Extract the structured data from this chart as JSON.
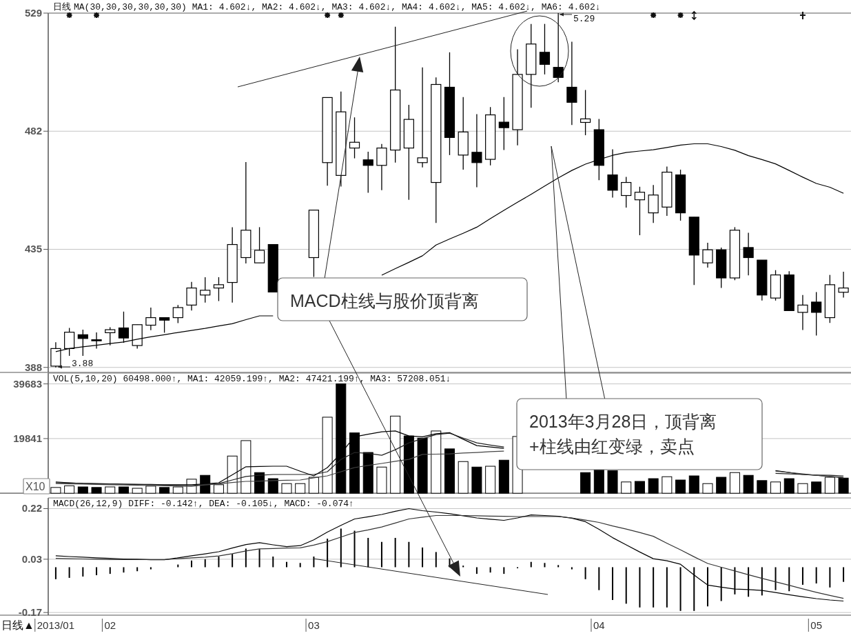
{
  "chart_data": [
    {
      "type": "candlestick",
      "title": "日线",
      "subtitle": "MA(30,30,30,30,30,30) MA1: 4.602↓, MA2: 4.602↓, MA3: 4.602↓, MA4: 4.602↓, MA5: 4.602↓, MA6: 4.602↓",
      "categories": [
        null,
        null,
        null,
        null,
        null,
        null,
        null,
        null,
        null,
        null,
        null,
        null,
        null,
        null,
        null,
        null,
        null,
        null,
        null,
        null,
        null,
        null,
        null,
        null,
        null,
        null,
        null,
        null,
        null,
        null,
        null,
        null,
        null,
        null,
        null,
        null,
        null,
        null,
        null,
        null,
        null,
        null,
        null,
        null,
        null,
        null,
        null,
        null,
        null,
        null,
        null,
        null,
        null,
        null,
        null,
        null,
        null,
        null,
        null
      ],
      "ohlc": [
        [
          388.5,
          398,
          388,
          395.5
        ],
        [
          395.5,
          403.7,
          392.6,
          402
        ],
        [
          401,
          403,
          392.6,
          399.5
        ],
        [
          399,
          401.9,
          395.5,
          399
        ],
        [
          401.8,
          404,
          396.8,
          403
        ],
        [
          403.7,
          410.2,
          397.8,
          399.7
        ],
        [
          396.7,
          405,
          395.5,
          405
        ],
        [
          404.8,
          411.8,
          402.8,
          407.8
        ],
        [
          407.8,
          407.8,
          401.8,
          406.8
        ],
        [
          407.8,
          412.8,
          405.6,
          411.8
        ],
        [
          412.8,
          422,
          410.6,
          419.6
        ],
        [
          416.8,
          423.9,
          413.8,
          418.7
        ],
        [
          419.6,
          423.9,
          414.4,
          420.9
        ],
        [
          421.8,
          443.8,
          413.8,
          436.9
        ],
        [
          431.7,
          469.7,
          429.4,
          442.6
        ],
        [
          429.6,
          443.8,
          429.6,
          434.6
        ],
        [
          436.9,
          436.9,
          418,
          418
        ],
        null,
        null,
        [
          431.7,
          450.6,
          424,
          450.6
        ],
        [
          469.5,
          495.4,
          460.3,
          495.4
        ],
        [
          464.4,
          497.8,
          460,
          489.7
        ],
        [
          475.3,
          487.5,
          471.2,
          477.6
        ],
        [
          470.6,
          473.8,
          457.5,
          468.4
        ],
        [
          468.4,
          476.9,
          458.5,
          475.3
        ],
        [
          474.5,
          523.6,
          469.5,
          498.4
        ],
        [
          475.3,
          492.5,
          454.7,
          486.7
        ],
        [
          469.5,
          507.4,
          467.6,
          471.4
        ],
        [
          461.6,
          503.4,
          445.5,
          500.6
        ],
        [
          499.5,
          513.4,
          472.5,
          479.5
        ],
        [
          472.5,
          495.6,
          466.7,
          481.7
        ],
        [
          473.6,
          488.8,
          459.7,
          469.5
        ],
        [
          470.8,
          491.6,
          468.4,
          488.5
        ],
        [
          485.6,
          495.6,
          474.5,
          483.4
        ],
        [
          482.6,
          514.6,
          476.4,
          504.6
        ],
        [
          504.6,
          524.7,
          491.3,
          516.7
        ],
        [
          513.4,
          524.7,
          504.6,
          508.6
        ],
        [
          507.4,
          529,
          501.5,
          503.4
        ],
        [
          499.5,
          517.6,
          484.5,
          493.5
        ],
        [
          485.5,
          498.4,
          480.4,
          486.9
        ],
        [
          482.6,
          486.9,
          462.5,
          468.4
        ],
        [
          464.6,
          474.8,
          455.6,
          458.5
        ],
        [
          456.4,
          463.8,
          451.6,
          461.6
        ],
        [
          454.7,
          459.9,
          440.6,
          457.7
        ],
        [
          449.5,
          460.6,
          445.5,
          456.6
        ],
        [
          451.8,
          467.9,
          448.3,
          465.7
        ],
        [
          464.6,
          466.7,
          446.4,
          449.5
        ],
        [
          447.8,
          447.8,
          420.8,
          432.7
        ],
        [
          429.6,
          437.6,
          427.7,
          434.8
        ],
        [
          434.8,
          435.7,
          419.6,
          423.6
        ],
        [
          423.6,
          443.8,
          422.7,
          442.6
        ],
        [
          435.7,
          441.6,
          424.6,
          431.7
        ],
        [
          430.7,
          430.7,
          414.6,
          416.8
        ],
        [
          415.6,
          426.7,
          414.6,
          424.8
        ],
        [
          424.8,
          426.3,
          410.6,
          410.6
        ],
        [
          409.9,
          416.8,
          402.9,
          412.8
        ],
        [
          414,
          418,
          400.7,
          409.9
        ],
        [
          407.8,
          424.8,
          405.7,
          420.9
        ],
        [
          417.9,
          426.1,
          415.8,
          419.6
        ]
      ],
      "series": [
        {
          "type": "line",
          "color": "#000000",
          "values": [
            394.3,
            395.5,
            396.2,
            396.8,
            397.5,
            398.1,
            399.2,
            400.2,
            401.0,
            401.9,
            402.7,
            403.5,
            404.5,
            405.4,
            407.0,
            408.5,
            408.5,
            null,
            null,
            null,
            null,
            null,
            null,
            null,
            424.7,
            427.3,
            429.8,
            432.4,
            436.7,
            439.1,
            441.4,
            443.8,
            447.2,
            450.5,
            453.7,
            456.9,
            460.2,
            463.4,
            466.4,
            468.9,
            470.7,
            472.4,
            473.5,
            474.1,
            474.6,
            475.5,
            476.5,
            477.0,
            477.0,
            475.9,
            474.4,
            472.3,
            470.7,
            469.0,
            466.4,
            463.7,
            461.2,
            459.7,
            457.3
          ]
        }
      ],
      "ylim": [
        386,
        529
      ],
      "yticks": [
        388,
        435,
        482,
        529
      ],
      "grid": "y",
      "tick_labels": "y",
      "annotations": [
        "3.88",
        "5.29",
        "MACD柱线与股价顶背离",
        "2013年3月28日，顶背离+柱线由红变绿，卖点"
      ]
    },
    {
      "type": "bar",
      "title": "VOL(5,10,20) 60498.000↑, MA1: 42059.199↑, MA2: 47421.199↑, MA3: 57208.051↓",
      "categories": [
        null,
        null,
        null,
        null,
        null,
        null,
        null,
        null,
        null,
        null,
        null,
        null,
        null,
        null,
        null,
        null,
        null,
        null,
        null,
        null,
        null,
        null,
        null,
        null,
        null,
        null,
        null,
        null,
        null,
        null,
        null,
        null,
        null,
        null,
        null,
        null,
        null,
        null,
        null,
        null,
        null,
        null,
        null,
        null,
        null,
        null,
        null,
        null,
        null,
        null,
        null,
        null,
        null,
        null,
        null,
        null,
        null,
        null,
        null
      ],
      "series": [
        {
          "type": "line",
          "color": "#000000",
          "values": [
            4100,
            3800,
            3500,
            3400,
            3400,
            3300,
            3200,
            3200,
            3100,
            3100,
            3100,
            3400,
            3800,
            6700,
            9600,
            9700,
            9800,
            9800,
            8000,
            6300,
            9300,
            14500,
            20500,
            21400,
            22300,
            22600,
            20800,
            20500,
            21600,
            22000,
            19600,
            17300,
            16800,
            16300,
            null,
            null,
            null,
            null,
            null,
            null,
            null,
            null,
            null,
            null,
            null,
            null,
            null,
            null,
            null,
            null,
            null,
            null,
            null,
            8200,
            7500,
            6800,
            6500,
            6100,
            5800
          ]
        },
        {
          "type": "line",
          "color": "#222222",
          "values": [
            3800,
            3700,
            3600,
            3500,
            3400,
            3300,
            3200,
            3100,
            3000,
            2900,
            2800,
            3200,
            3500,
            4800,
            6100,
            6500,
            6800,
            6800,
            6800,
            6800,
            7800,
            12300,
            14800,
            14500,
            13800,
            15800,
            18300,
            19800,
            21300,
            21800,
            20000,
            18300,
            17500,
            16800,
            null,
            null,
            null,
            null,
            null,
            null,
            null,
            null,
            null,
            null,
            null,
            null,
            null,
            null,
            null,
            null,
            null,
            null,
            null,
            7200,
            7000,
            6800,
            6600,
            6500,
            6300
          ]
        },
        {
          "type": "line",
          "color": "#444444",
          "values": [
            3500,
            3400,
            3300,
            3200,
            3100,
            3000,
            2900,
            2800,
            2700,
            2600,
            2500,
            3000,
            3400,
            3900,
            4300,
            4400,
            4600,
            4700,
            4800,
            5600,
            6300,
            7800,
            9300,
            10100,
            10800,
            11600,
            12300,
            14100,
            14200,
            14300,
            14600,
            14800,
            15100,
            15300,
            null,
            null,
            null,
            null,
            null,
            null,
            null,
            null,
            null,
            null,
            null,
            null,
            null,
            null,
            null,
            null,
            null,
            null,
            null,
            8000,
            7500,
            7000,
            6500,
            6100,
            5600
          ]
        },
        {
          "type": "bar",
          "values": [
            2100,
            2700,
            2300,
            2100,
            2300,
            2300,
            1800,
            2600,
            2100,
            2300,
            5100,
            6500,
            3100,
            13500,
            19100,
            7500,
            5300,
            3500,
            3500,
            5800,
            27600,
            39700,
            21900,
            14800,
            9500,
            28000,
            20800,
            20000,
            22600,
            16100,
            11500,
            9500,
            9800,
            12000,
            20600,
            null,
            null,
            null,
            null,
            7500,
            8500,
            8200,
            4100,
            4300,
            5300,
            6000,
            4800,
            6300,
            3500,
            5800,
            7500,
            6500,
            4600,
            4100,
            5300,
            3500,
            4100,
            5800,
            5500
          ],
          "colors": [
            "#ffffff",
            "#ffffff",
            "#000000",
            "#000000",
            "#ffffff",
            "#000000",
            "#ffffff",
            "#ffffff",
            "#000000",
            "#ffffff",
            "#ffffff",
            "#000000",
            "#ffffff",
            "#ffffff",
            "#ffffff",
            "#000000",
            "#000000",
            "#ffffff",
            "#ffffff",
            "#ffffff",
            "#ffffff",
            "#000000",
            "#000000",
            "#000000",
            "#ffffff",
            "#ffffff",
            "#000000",
            "#000000",
            "#ffffff",
            "#000000",
            "#ffffff",
            "#000000",
            "#ffffff",
            "#000000",
            "#ffffff",
            null,
            null,
            null,
            null,
            "#000000",
            "#000000",
            "#000000",
            "#ffffff",
            "#000000",
            "#000000",
            "#ffffff",
            "#000000",
            "#000000",
            "#ffffff",
            "#000000",
            "#ffffff",
            "#000000",
            "#000000",
            "#ffffff",
            "#000000",
            "#ffffff",
            "#000000",
            "#ffffff",
            "#000000"
          ]
        }
      ],
      "ylim": [
        0,
        43600
      ],
      "yticks": [
        19841,
        39683
      ],
      "grid": "y",
      "tick_labels": "y",
      "annotations": [
        "X10"
      ]
    },
    {
      "type": "bar",
      "title": "MACD(26,12,9) DIFF: -0.142↑, DEA: -0.105↓, MACD: -0.074↑",
      "xlabel": "日线▲",
      "categories": [
        "2013/01",
        null,
        null,
        null,
        "02",
        null,
        null,
        null,
        null,
        null,
        null,
        null,
        null,
        null,
        null,
        null,
        null,
        null,
        null,
        "03",
        null,
        null,
        null,
        null,
        null,
        null,
        null,
        null,
        null,
        null,
        null,
        null,
        null,
        null,
        null,
        null,
        null,
        null,
        null,
        null,
        "04",
        null,
        null,
        null,
        null,
        null,
        null,
        null,
        null,
        null,
        null,
        null,
        null,
        null,
        null,
        null,
        "05",
        null,
        null
      ],
      "series": [
        {
          "type": "line",
          "color": "#000000",
          "values": [
            0.043,
            0.04,
            0.038,
            0.035,
            0.033,
            0.031,
            0.03,
            0.028,
            0.028,
            0.035,
            0.043,
            0.05,
            0.058,
            0.072,
            0.085,
            0.092,
            0.084,
            0.077,
            0.081,
            0.103,
            0.132,
            0.157,
            0.181,
            0.189,
            0.198,
            0.21,
            0.22,
            0.212,
            0.207,
            0.201,
            0.193,
            0.185,
            0.18,
            0.176,
            0.185,
            0.196,
            0.194,
            0.191,
            0.184,
            0.171,
            0.142,
            0.111,
            0.084,
            0.057,
            0.032,
            0.024,
            0.011,
            -0.029,
            -0.067,
            -0.075,
            -0.082,
            -0.084,
            -0.087,
            -0.095,
            -0.103,
            -0.111,
            -0.118,
            -0.123,
            -0.127
          ]
        },
        {
          "type": "line",
          "color": "#333333",
          "values": [
            0.033,
            0.032,
            0.031,
            0.03,
            0.029,
            0.029,
            0.029,
            0.029,
            0.029,
            0.032,
            0.035,
            0.038,
            0.042,
            0.051,
            0.061,
            0.069,
            0.07,
            0.072,
            0.073,
            0.083,
            0.096,
            0.113,
            0.13,
            0.14,
            0.151,
            0.166,
            0.181,
            0.188,
            0.194,
            0.194,
            0.194,
            0.193,
            0.192,
            0.191,
            0.19,
            0.19,
            0.19,
            0.19,
            0.185,
            0.177,
            0.168,
            0.155,
            0.143,
            0.13,
            0.116,
            0.09,
            0.065,
            0.039,
            0.014,
            0.0,
            -0.014,
            -0.028,
            -0.042,
            -0.055,
            -0.068,
            -0.081,
            -0.094,
            -0.106,
            -0.117
          ]
        },
        {
          "type": "bar",
          "color": "#000000",
          "values": [
            -0.045,
            -0.04,
            -0.035,
            -0.03,
            -0.025,
            -0.02,
            -0.015,
            -0.008,
            null,
            0.01,
            0.025,
            0.03,
            0.04,
            0.05,
            0.07,
            0.068,
            0.04,
            0.02,
            0.016,
            0.04,
            0.107,
            0.145,
            0.137,
            0.11,
            0.095,
            0.11,
            0.095,
            0.074,
            0.057,
            0.033,
            0.006,
            -0.025,
            -0.02,
            -0.025,
            -0.004,
            0.02,
            0.016,
            0.008,
            -0.008,
            -0.045,
            -0.086,
            -0.123,
            -0.137,
            -0.151,
            -0.151,
            -0.151,
            -0.164,
            -0.164,
            -0.147,
            -0.127,
            -0.102,
            -0.111,
            -0.106,
            -0.086,
            -0.09,
            -0.066,
            -0.061,
            -0.076,
            -0.055
          ]
        }
      ],
      "ylim": [
        -0.18,
        0.26
      ],
      "yticks": [
        -0.17,
        0.03,
        0.22
      ],
      "grid": "y"
    }
  ]
}
